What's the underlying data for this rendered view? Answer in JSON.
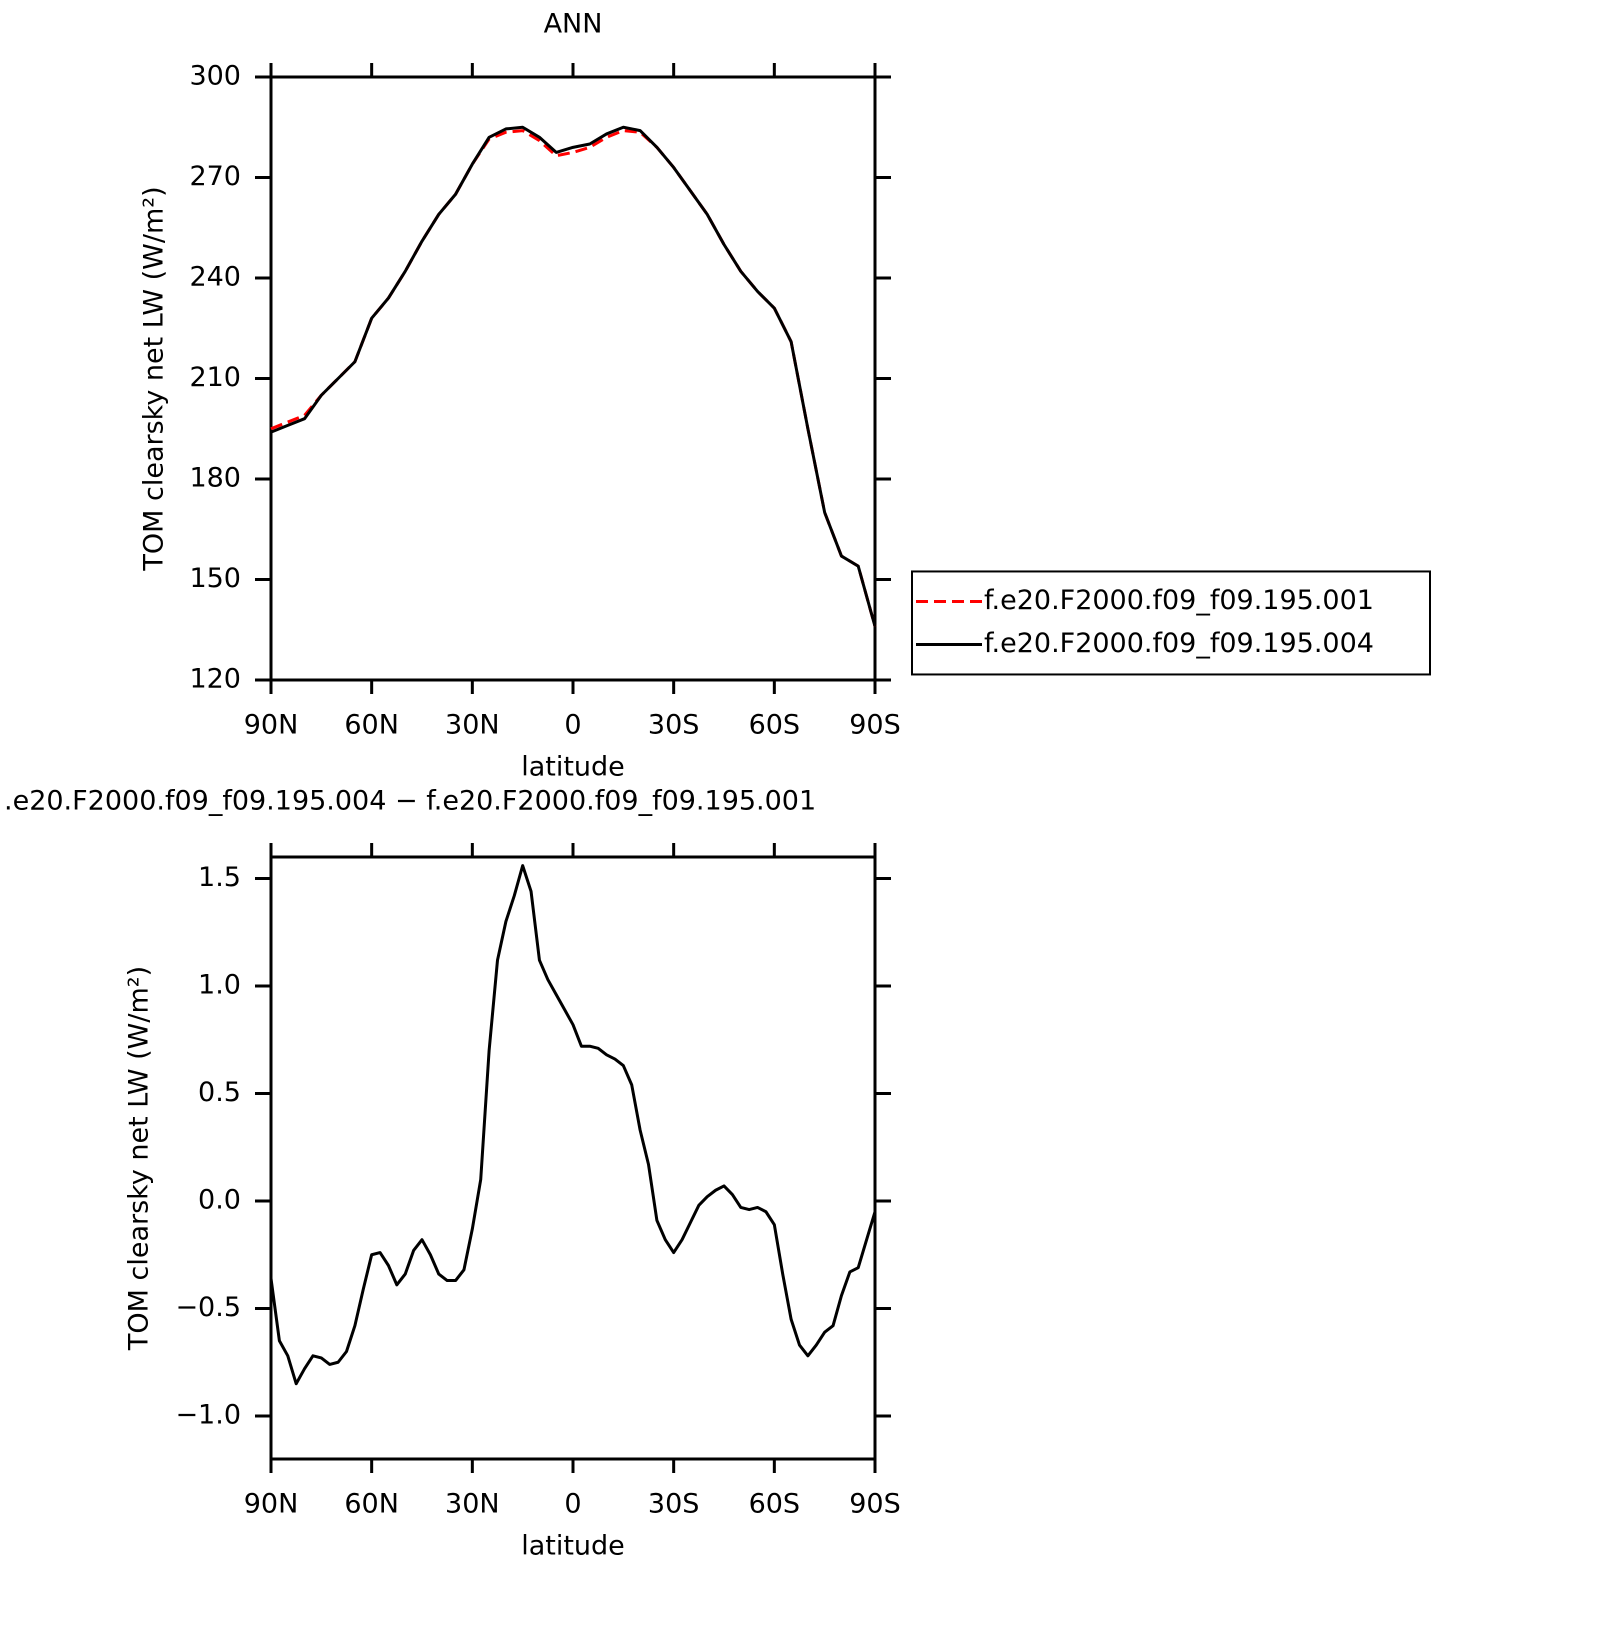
{
  "chart_data": [
    {
      "type": "line",
      "title": "ANN",
      "xlabel": "latitude",
      "ylabel": "TOM clearsky net LW (W/m²)",
      "x": [
        90,
        85,
        80,
        75,
        70,
        65,
        60,
        55,
        50,
        45,
        40,
        35,
        30,
        25,
        20,
        15,
        10,
        5,
        0,
        -5,
        -10,
        -15,
        -20,
        -25,
        -30,
        -35,
        -40,
        -45,
        -50,
        -55,
        -60,
        -65,
        -70,
        -75,
        -80,
        -85,
        -90
      ],
      "series": [
        {
          "name": "f.e20.F2000.f09_f09.195.001",
          "color": "#ff0000",
          "style": "dashed",
          "values": [
            195,
            197,
            199,
            205,
            210,
            215,
            228,
            234,
            242,
            251,
            259,
            265,
            274,
            281.5,
            283.5,
            284,
            281,
            276.5,
            277.5,
            279,
            282,
            284,
            283.5,
            279,
            273,
            266,
            259,
            250,
            242,
            236,
            231,
            221,
            195,
            170,
            157,
            154,
            136
          ]
        },
        {
          "name": "f.e20.F2000.f09_f09.195.004",
          "color": "#000000",
          "style": "solid",
          "values": [
            194,
            196,
            198,
            205,
            210,
            215,
            228,
            234,
            242,
            251,
            259,
            265,
            274,
            282,
            284.5,
            285,
            282,
            277.5,
            279,
            280,
            283,
            285,
            284,
            279,
            273,
            266,
            259,
            250,
            242,
            236,
            231,
            221,
            195,
            170,
            157,
            154,
            136
          ]
        }
      ],
      "xlim": [
        90,
        -90
      ],
      "xticks": [
        {
          "value": 90,
          "label": "90N"
        },
        {
          "value": 60,
          "label": "60N"
        },
        {
          "value": 30,
          "label": "30N"
        },
        0,
        {
          "value": -30,
          "label": "30S"
        },
        {
          "value": -60,
          "label": "60S"
        },
        {
          "value": -90,
          "label": "90S"
        }
      ],
      "ylim": [
        120,
        300
      ],
      "yticks": [
        120,
        150,
        180,
        210,
        240,
        270,
        300
      ],
      "legend": "right"
    },
    {
      "type": "line",
      "title": ".e20.F2000.f09_f09.195.004 − f.e20.F2000.f09_f09.195.001",
      "xlabel": "latitude",
      "ylabel": "TOM clearsky net LW (W/m²)",
      "x": [
        90,
        87.5,
        85,
        82.5,
        80,
        77.5,
        75,
        72.5,
        70,
        67.5,
        65,
        62.5,
        60,
        57.5,
        55,
        52.5,
        50,
        47.5,
        45,
        42.5,
        40,
        37.5,
        35,
        32.5,
        30,
        27.5,
        25,
        22.5,
        20,
        17.5,
        15,
        12.5,
        10,
        7.5,
        5,
        2.5,
        0,
        -2.5,
        -5,
        -7.5,
        -10,
        -12.5,
        -15,
        -17.5,
        -20,
        -22.5,
        -25,
        -27.5,
        -30,
        -32.5,
        -35,
        -37.5,
        -40,
        -42.5,
        -45,
        -47.5,
        -50,
        -52.5,
        -55,
        -57.5,
        -60,
        -62.5,
        -65,
        -67.5,
        -70,
        -72.5,
        -75,
        -77.5,
        -80,
        -82.5,
        -85,
        -87.5,
        -90
      ],
      "series": [
        {
          "color": "#000000",
          "style": "solid",
          "values": [
            -0.36,
            -0.65,
            -0.72,
            -0.85,
            -0.78,
            -0.72,
            -0.73,
            -0.76,
            -0.75,
            -0.7,
            -0.58,
            -0.41,
            -0.25,
            -0.24,
            -0.3,
            -0.39,
            -0.34,
            -0.23,
            -0.18,
            -0.25,
            -0.34,
            -0.37,
            -0.37,
            -0.32,
            -0.13,
            0.1,
            0.7,
            1.12,
            1.3,
            1.42,
            1.56,
            1.44,
            1.12,
            1.03,
            0.96,
            0.89,
            0.82,
            0.72,
            0.72,
            0.71,
            0.68,
            0.66,
            0.63,
            0.54,
            0.33,
            0.17,
            -0.09,
            -0.18,
            -0.24,
            -0.18,
            -0.1,
            -0.02,
            0.02,
            0.05,
            0.07,
            0.03,
            -0.03,
            -0.04,
            -0.03,
            -0.05,
            -0.11,
            -0.34,
            -0.55,
            -0.67,
            -0.72,
            -0.67,
            -0.61,
            -0.58,
            -0.44,
            -0.33,
            -0.31,
            -0.18,
            -0.05
          ]
        }
      ],
      "xlim": [
        90,
        -90
      ],
      "xticks": [
        {
          "value": 90,
          "label": "90N"
        },
        {
          "value": 60,
          "label": "60N"
        },
        {
          "value": 30,
          "label": "30N"
        },
        0,
        {
          "value": -30,
          "label": "30S"
        },
        {
          "value": -60,
          "label": "60S"
        },
        {
          "value": -90,
          "label": "90S"
        }
      ],
      "ylim": [
        -1.2,
        1.6
      ],
      "yticks": [
        {
          "value": -1,
          "label": "−1.0"
        },
        {
          "value": -0.5,
          "label": "−0.5"
        },
        {
          "value": 0,
          "label": "0.0"
        },
        0.5,
        {
          "value": 1,
          "label": "1.0"
        },
        1.5
      ]
    }
  ]
}
